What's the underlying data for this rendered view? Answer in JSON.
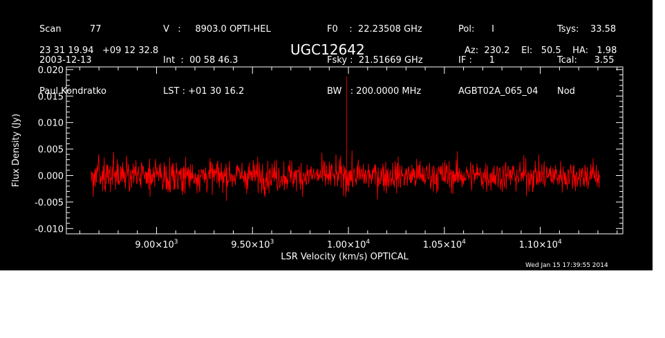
{
  "header": {
    "col1": [
      "Scan          77",
      "2003-12-13",
      "Paul Kondratko"
    ],
    "col2": [
      "V   :     8903.0 OPTI-HEL",
      "Int  :  00 58 46.3",
      "LST : +01 30 16.2"
    ],
    "col3": [
      "F0    :  22.23508 GHz",
      "Fsky :  21.51669 GHz",
      "BW   : 200.0000 MHz"
    ],
    "col4": [
      "Pol:      I",
      "IF :      1",
      "AGBT02A_065_04"
    ],
    "col5": [
      "Tsys:    33.58",
      "Tcal:      3.55",
      "Nod"
    ],
    "coords": "23 31 19.94   +09 12 32.8",
    "source": "UGC12642",
    "azel": "Az:  230.2    El:   50.5    HA:   1.98"
  },
  "footer": {
    "date": "Wed Jan 15 17:39:55 2014"
  },
  "colors": {
    "background": "#000000",
    "axes": "#ffffff",
    "spectrum": "#ff0000"
  },
  "chart_data": {
    "type": "line",
    "title": "UGC12642",
    "xlabel": "LSR Velocity (km/s) OPTICAL",
    "ylabel": "Flux Density (Jy)",
    "xlim": [
      8530,
      11430
    ],
    "ylim": [
      -0.011,
      0.0205
    ],
    "x_ticks": [
      {
        "value": 9000,
        "mantissa": "9.00",
        "exponent": "3"
      },
      {
        "value": 9500,
        "mantissa": "9.50",
        "exponent": "3"
      },
      {
        "value": 10000,
        "mantissa": "1.00",
        "exponent": "4"
      },
      {
        "value": 10500,
        "mantissa": "1.05",
        "exponent": "4"
      },
      {
        "value": 11000,
        "mantissa": "1.10",
        "exponent": "4"
      }
    ],
    "y_ticks": [
      {
        "value": 0.02,
        "label": "0.020"
      },
      {
        "value": 0.015,
        "label": "0.015"
      },
      {
        "value": 0.01,
        "label": "0.010"
      },
      {
        "value": 0.005,
        "label": "0.005"
      },
      {
        "value": 0.0,
        "label": "0.000"
      },
      {
        "value": -0.005,
        "label": "-0.005"
      },
      {
        "value": -0.01,
        "label": "-0.010"
      }
    ],
    "grid": false,
    "series": [
      {
        "color": "#ff0000",
        "x_range": [
          8660,
          11310
        ],
        "points": 1300,
        "baseline": 0.0,
        "noise_envelope": [
          -0.0045,
          0.0045
        ],
        "features": [
          {
            "x": 9990,
            "y": 0.0187
          },
          {
            "x": 9990,
            "y": -0.003
          }
        ]
      }
    ]
  }
}
